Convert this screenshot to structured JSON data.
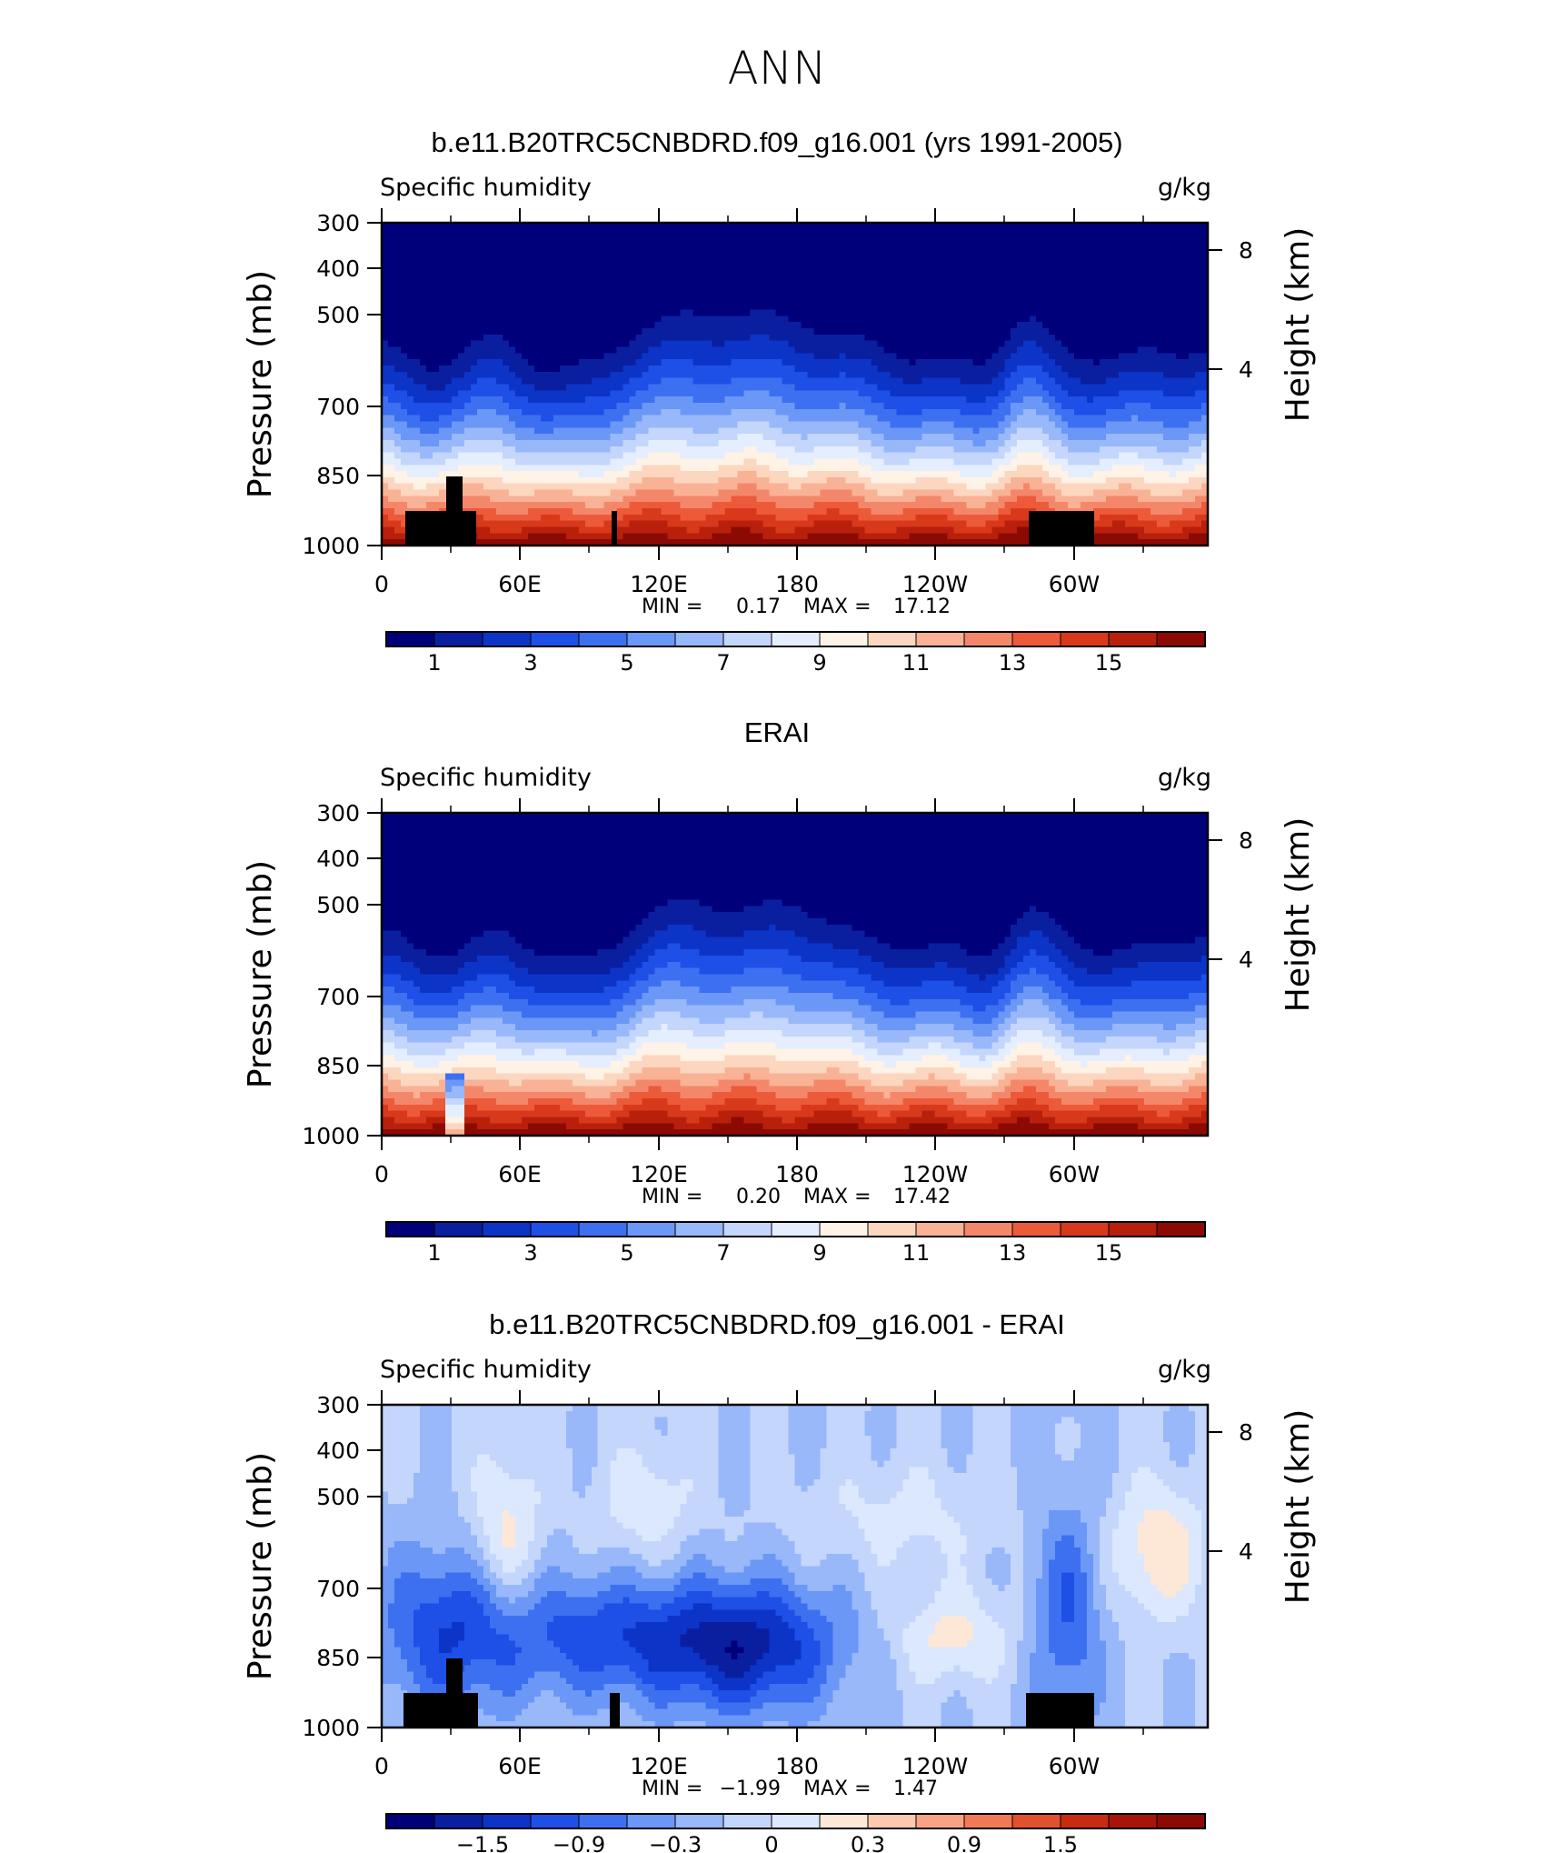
{
  "page_title": "ANN",
  "chart_data": [
    {
      "type": "heatmap",
      "title": "b.e11.B20TRC5CNBDRD.f09_g16.001 (yrs 1991-2005)",
      "left_label": "Specific humidity",
      "right_label": "g/kg",
      "ylabel": "Pressure (mb)",
      "ylabel_right": "Height (km)",
      "x_ticks": [
        "0",
        "60E",
        "120E",
        "180",
        "120W",
        "60W"
      ],
      "y_ticks": [
        "300",
        "400",
        "500",
        "700",
        "850",
        "1000"
      ],
      "y_ticks_right": [
        "8",
        "4"
      ],
      "stats": {
        "min_label": "MIN =",
        "min": "0.17",
        "max_label": "MAX =",
        "max": "17.12"
      },
      "colorbar_labels": [
        "1",
        "3",
        "5",
        "7",
        "9",
        "11",
        "13",
        "15"
      ],
      "ylim": [
        1000,
        300
      ],
      "xlim": [
        0,
        360
      ]
    },
    {
      "type": "heatmap",
      "title": "ERAI",
      "left_label": "Specific humidity",
      "right_label": "g/kg",
      "ylabel": "Pressure (mb)",
      "ylabel_right": "Height (km)",
      "x_ticks": [
        "0",
        "60E",
        "120E",
        "180",
        "120W",
        "60W"
      ],
      "y_ticks": [
        "300",
        "400",
        "500",
        "700",
        "850",
        "1000"
      ],
      "y_ticks_right": [
        "8",
        "4"
      ],
      "stats": {
        "min_label": "MIN =",
        "min": "0.20",
        "max_label": "MAX =",
        "max": "17.42"
      },
      "colorbar_labels": [
        "1",
        "3",
        "5",
        "7",
        "9",
        "11",
        "13",
        "15"
      ],
      "ylim": [
        1000,
        300
      ],
      "xlim": [
        0,
        360
      ]
    },
    {
      "type": "heatmap",
      "title": "b.e11.B20TRC5CNBDRD.f09_g16.001 - ERAI",
      "left_label": "Specific humidity",
      "right_label": "g/kg",
      "ylabel": "Pressure (mb)",
      "ylabel_right": "Height (km)",
      "x_ticks": [
        "0",
        "60E",
        "120E",
        "180",
        "120W",
        "60W"
      ],
      "y_ticks": [
        "300",
        "400",
        "500",
        "700",
        "850",
        "1000"
      ],
      "y_ticks_right": [
        "8",
        "4"
      ],
      "stats": {
        "min_label": "MIN =",
        "min": "−1.99",
        "max_label": "MAX =",
        "max": "1.47"
      },
      "colorbar_labels": [
        "−1.5",
        "−0.9",
        "−0.3",
        "0",
        "0.3",
        "0.9",
        "1.5"
      ],
      "ylim": [
        1000,
        300
      ],
      "xlim": [
        0,
        360
      ]
    }
  ],
  "colors": {
    "abs_levels": [
      "#00007a",
      "#0a1fa0",
      "#0c35c8",
      "#1e4fe6",
      "#3d70f0",
      "#6b97f6",
      "#98b8fa",
      "#c4d6fc",
      "#e4eefe",
      "#fff2e6",
      "#fdd6bf",
      "#f9b295",
      "#f4876a",
      "#ec5a3a",
      "#d8391b",
      "#b8200c",
      "#8c0a04"
    ],
    "diff_levels": [
      "#00007a",
      "#0a1fa0",
      "#0c35c8",
      "#1e4fe6",
      "#3d70f0",
      "#6b97f6",
      "#98b8fa",
      "#c4d6fc",
      "#dce8fd",
      "#fde7d6",
      "#fcc9ae",
      "#f8a384",
      "#f07a55",
      "#e2512d",
      "#c82c10",
      "#a8140a",
      "#8c0a04"
    ],
    "topography": "#000000"
  }
}
